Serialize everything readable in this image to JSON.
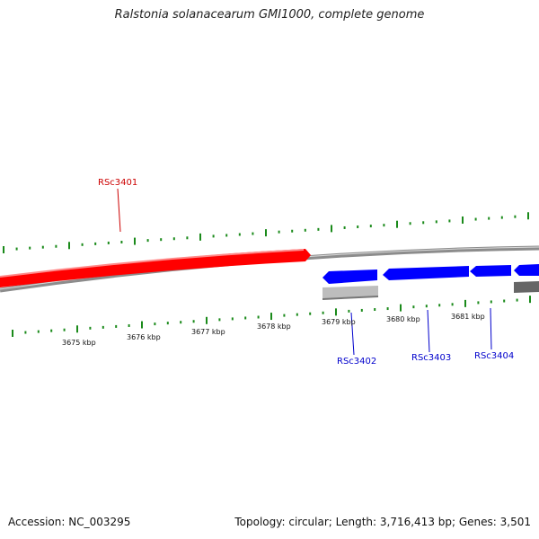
{
  "title": "Ralstonia solanacearum GMI1000, complete genome",
  "footer": {
    "accession": "Accession: NC_003295",
    "summary": "Topology: circular; Length: 3,716,413 bp; Genes: 3,501"
  },
  "colors": {
    "forward_gene": "#ff0000",
    "reverse_gene": "#0000ff",
    "gene_label_forward": "#cc0000",
    "gene_label_reverse": "#0000cc",
    "backbone": "#8c8c8c",
    "ticks": "#1a8a1a",
    "grey_track": "#bdbdbd",
    "dark_track": "#666666"
  },
  "scale_labels": [
    "3675 kbp",
    "3676 kbp",
    "3677 kbp",
    "3678 kbp",
    "3679 kbp",
    "3680 kbp",
    "3681 kbp"
  ],
  "genes": [
    {
      "label": "RSc3401",
      "strand": "forward"
    },
    {
      "label": "RSc3402",
      "strand": "reverse"
    },
    {
      "label": "RSc3403",
      "strand": "reverse"
    },
    {
      "label": "RSc3404",
      "strand": "reverse"
    }
  ]
}
